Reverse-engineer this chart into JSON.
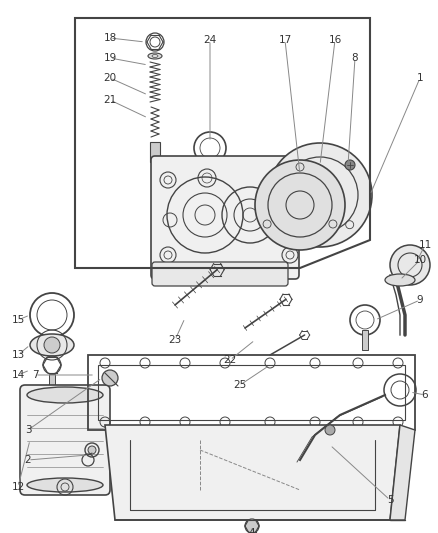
{
  "bg_color": "#ffffff",
  "lc": "#444444",
  "tc": "#333333",
  "fig_width": 4.38,
  "fig_height": 5.33,
  "dpi": 100
}
